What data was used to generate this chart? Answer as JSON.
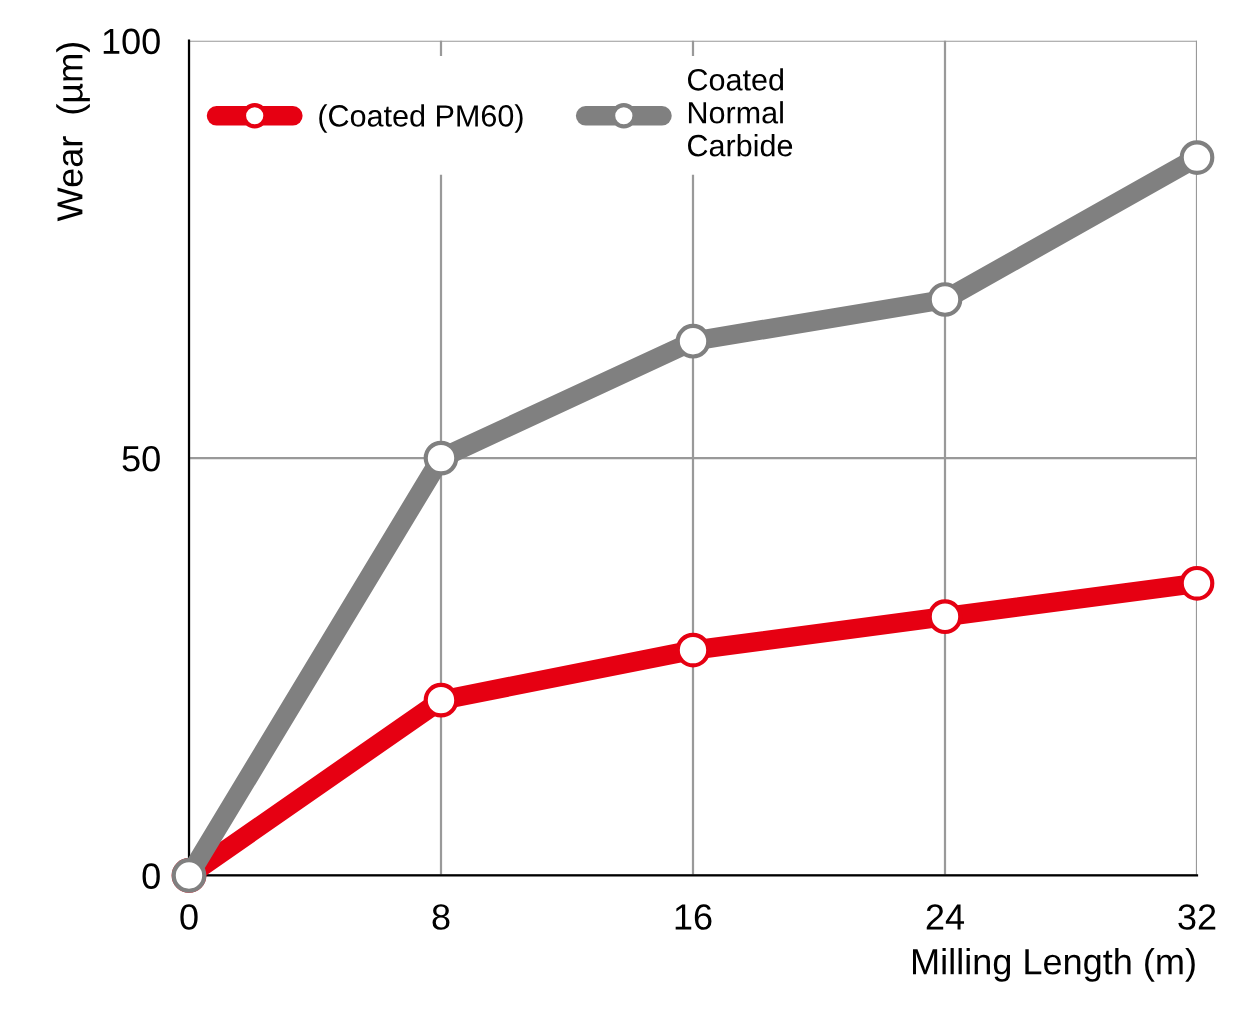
{
  "chart_data": {
    "type": "line",
    "xlabel": "Milling Length (m)",
    "ylabel": "Wear  (µm)",
    "x": [
      0,
      8,
      16,
      24,
      32
    ],
    "series": [
      {
        "name": "(Coated PM60)",
        "color": "#e60012",
        "values": [
          0,
          21,
          27,
          31,
          35
        ]
      },
      {
        "name": "Coated\nNormal\nCarbide",
        "color": "#808080",
        "values": [
          0,
          50,
          64,
          69,
          86
        ]
      }
    ],
    "xlim": [
      0,
      32
    ],
    "xticks": [
      0,
      8,
      16,
      24,
      32
    ],
    "ylim": [
      0,
      100
    ],
    "yticks": [
      0,
      50,
      100
    ],
    "grid": true,
    "legend": "top left",
    "marker": "circle",
    "line_style": "solid"
  }
}
